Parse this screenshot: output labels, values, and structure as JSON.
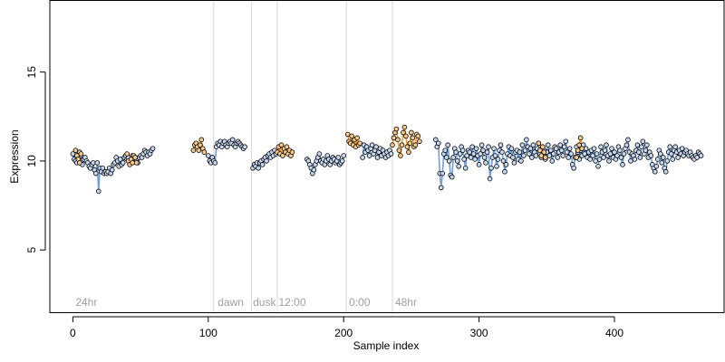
{
  "chart_data": {
    "type": "scatter",
    "xlabel": "Sample index",
    "ylabel": "Expression",
    "xlim": [
      -17,
      481
    ],
    "ylim": [
      1.5,
      19
    ],
    "x_ticks": [
      0,
      100,
      200,
      300,
      400
    ],
    "y_ticks": [
      5,
      10,
      15
    ],
    "grid": false,
    "region_boundaries": [
      104,
      132,
      151,
      202,
      236
    ],
    "region_labels": [
      {
        "text": "24hr",
        "x": 2
      },
      {
        "text": "dawn",
        "x": 107
      },
      {
        "text": "dusk",
        "x": 133
      },
      {
        "text": "12:00",
        "x": 152
      },
      {
        "text": "0:00",
        "x": 204
      },
      {
        "text": "48hr",
        "x": 238
      }
    ],
    "colors": {
      "blue_series": "#6f9fd8",
      "orange_series": "#f0a030",
      "point_blue_fill": "#c6d9f1",
      "point_orange_fill": "#f7c98a",
      "region_line": "#d8d8d8"
    },
    "series": [
      {
        "color_key": "blue",
        "segments": [
          {
            "x0": 0,
            "values": [
              10.4,
              10.1,
              10.0,
              9.9,
              10.2,
              10.5,
              10.3,
              9.8,
              10.1,
              10.2,
              10.0,
              9.9,
              9.7,
              9.6,
              9.8,
              9.9,
              9.5,
              9.3,
              9.9,
              8.3,
              9.6,
              9.4,
              9.6,
              9.3,
              9.4,
              9.3,
              9.4,
              9.6,
              9.3,
              9.5,
              9.8,
              9.9,
              10.2,
              10.0,
              9.7,
              10.1,
              9.8,
              9.9,
              10.2,
              10.3,
              10.1,
              10.2,
              10.0,
              10.1,
              10.3,
              10.2,
              10.1,
              10.0,
              9.9,
              10.2,
              10.3,
              10.2,
              10.4,
              10.6,
              10.5,
              10.3,
              10.5,
              10.4,
              10.6,
              10.7
            ]
          },
          {
            "x0": 100,
            "values": [
              10.3,
              10.0,
              9.9,
              10.2,
              10.0,
              9.9,
              10.8,
              11.0,
              10.9,
              11.1,
              10.8,
              11.0,
              11.1,
              10.9,
              10.8,
              11.0,
              11.1,
              11.0,
              11.2,
              10.9,
              10.8,
              11.0,
              11.1,
              11.0,
              10.9,
              10.8,
              10.7,
              10.8
            ]
          },
          {
            "x0": 133,
            "values": [
              9.6,
              9.8,
              9.7,
              9.9,
              9.6,
              9.9,
              10.0,
              9.8,
              10.1,
              10.2,
              10.0,
              10.3,
              10.4,
              10.2,
              10.5,
              10.3,
              10.6,
              10.4
            ]
          },
          {
            "x0": 173,
            "values": [
              10.1,
              10.0,
              9.8,
              9.6,
              9.3,
              9.5,
              9.8,
              10.0,
              10.2,
              10.4,
              10.0,
              9.9,
              10.1,
              9.8,
              10.0,
              10.3,
              10.1,
              9.8,
              10.0,
              10.2,
              10.1,
              9.9,
              10.0,
              10.2,
              9.8,
              9.9,
              10.0,
              10.3
            ]
          },
          {
            "x0": 214,
            "values": [
              10.2,
              10.9,
              10.5,
              10.8,
              10.6,
              10.3,
              10.7,
              10.9,
              10.4,
              10.6,
              10.8,
              10.2,
              10.5,
              10.7,
              10.3,
              10.6,
              10.4,
              10.2,
              10.5,
              10.3,
              10.6,
              10.4
            ]
          },
          {
            "x0": 268,
            "values": [
              11.2,
              10.8,
              11.0,
              9.3,
              8.5,
              9.3,
              10.4,
              10.6,
              10.2,
              10.9,
              10.0,
              9.2,
              9.1,
              10.2,
              10.7,
              10.5,
              10.0,
              9.7,
              10.4,
              10.8,
              10.6,
              10.1,
              9.6,
              10.3,
              10.6,
              10.5,
              10.2,
              10.8,
              10.4,
              10.1,
              10.7,
              10.3,
              9.8,
              10.4,
              10.9,
              10.6,
              10.2,
              9.9,
              10.5,
              10.8,
              9.0,
              9.6,
              10.2,
              10.7,
              10.3,
              9.7,
              10.1,
              10.6,
              10.9,
              10.5,
              10.0,
              9.4,
              9.8,
              10.4,
              10.8,
              10.3,
              10.7,
              10.2,
              9.9,
              10.5
            ]
          },
          {
            "x0": 328,
            "values": [
              10.6,
              10.1,
              10.5,
              10.0,
              10.9,
              10.3,
              10.6,
              11.2,
              10.8,
              10.4,
              10.7,
              10.2,
              10.9,
              10.5,
              10.3,
              10.7,
              11.0,
              10.4,
              10.2,
              10.8,
              10.6,
              10.1,
              10.5,
              10.9,
              10.3,
              10.6,
              10.0,
              10.4,
              10.8,
              10.7,
              10.2,
              10.5,
              10.9,
              10.6,
              10.3,
              10.8,
              11.1,
              10.5,
              10.2,
              10.7,
              10.4,
              9.8,
              9.6,
              10.2,
              10.8,
              10.5,
              10.1,
              10.6,
              10.3,
              10.9,
              10.4,
              10.7,
              10.2,
              10.5,
              10.1,
              10.6,
              10.3,
              10.7,
              10.0,
              10.4
            ]
          },
          {
            "x0": 388,
            "values": [
              9.7,
              10.1,
              10.8,
              10.5,
              10.2,
              10.6,
              10.9,
              10.3,
              10.0,
              10.4,
              10.7,
              10.2,
              10.5,
              10.1,
              10.3,
              10.8,
              10.6,
              10.2,
              9.8,
              10.4,
              10.7,
              10.9,
              11.2,
              10.5,
              10.0,
              10.4,
              10.3,
              10.1,
              10.6,
              10.9,
              10.5,
              10.2,
              10.8,
              11.1,
              10.4,
              10.6,
              10.9,
              10.2,
              10.5,
              10.3,
              9.8,
              9.6,
              9.4,
              9.7,
              10.1,
              10.6,
              10.4,
              9.9,
              10.2,
              9.6,
              9.4,
              10.0,
              10.5,
              10.8,
              10.4,
              10.1,
              10.6,
              10.8,
              10.5,
              10.2,
              10.6,
              10.4,
              10.7,
              10.3,
              10.5,
              10.6,
              10.4,
              10.3,
              10.5,
              10.3,
              10.2,
              10.1,
              10.3,
              10.2,
              10.5,
              10.4,
              10.3
            ]
          }
        ]
      },
      {
        "color_key": "orange",
        "segments": [
          {
            "x0": 2,
            "values": [
              10.6,
              10.3,
              10.1,
              9.9,
              10.4
            ]
          },
          {
            "x0": 40,
            "values": [
              10.4,
              10.0,
              9.8,
              10.1,
              9.9,
              10.3,
              10.2,
              9.9
            ]
          },
          {
            "x0": 89,
            "values": [
              10.6,
              10.9,
              11.0,
              10.8,
              10.6,
              10.9,
              11.2,
              10.7,
              10.5
            ]
          },
          {
            "x0": 151,
            "values": [
              10.5,
              10.8,
              10.4,
              10.9,
              10.3,
              10.7,
              10.5,
              10.8,
              10.4,
              10.6,
              10.3,
              10.5
            ]
          },
          {
            "x0": 203,
            "values": [
              11.5,
              11.1,
              11.0,
              11.4,
              10.9,
              11.2,
              10.8,
              11.3,
              10.9,
              11.0
            ]
          },
          {
            "x0": 236,
            "values": [
              10.9,
              11.3,
              11.6,
              11.8,
              11.2,
              10.6,
              10.3,
              10.9,
              11.6,
              11.9,
              11.4,
              10.8,
              10.5,
              11.0,
              11.6,
              11.3,
              10.8,
              10.9,
              11.5,
              11.4,
              11.1
            ]
          },
          {
            "x0": 344,
            "values": [
              11.0,
              10.6,
              10.3,
              10.8,
              10.5,
              10.2
            ]
          },
          {
            "x0": 372,
            "values": [
              10.2,
              10.6,
              10.9,
              11.3,
              10.7
            ]
          }
        ]
      }
    ]
  }
}
